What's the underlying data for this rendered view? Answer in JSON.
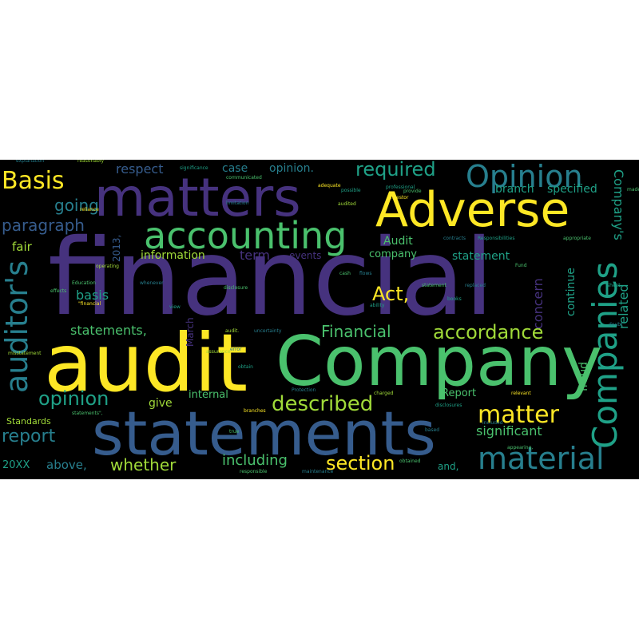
{
  "words": {
    "financial": "financial",
    "audit": "audit",
    "company": "Company",
    "statements": "statements",
    "adverse": "Adverse",
    "matters": "matters",
    "accounting": "accounting",
    "opinion_cap": "Opinion",
    "companies": "Companies",
    "auditors": "auditor's",
    "material": "material",
    "matter": "matter",
    "basis_cap": "Basis",
    "described": "described",
    "required": "required",
    "section": "section",
    "accordance": "accordance",
    "financial_cap": "Financial",
    "act": "Act,",
    "opinion": "opinion",
    "report": "report",
    "paragraph": "paragraph",
    "going": "going",
    "whether": "whether",
    "statements_comma": "statements,",
    "including": "including",
    "significant": "significant",
    "respect": "respect",
    "case": "case",
    "opinion_dot": "opinion.",
    "branch": "branch",
    "specified": "specified",
    "companys": "Company's",
    "fair": "fair",
    "basis": "basis",
    "information": "information",
    "term": "term",
    "events": "events",
    "audit_cap": "Audit",
    "company_low": "company",
    "statement": "statement",
    "concern": "concern",
    "continue": "continue",
    "related": "related",
    "fraud": "fraud",
    "report_cap": "Report",
    "internal": "internal",
    "give": "give",
    "standards": "Standards",
    "above": "above,",
    "and": "and,",
    "year_20xx": "20XX",
    "march": "March",
    "year_2013": "2013,",
    "small": [
      "explanation",
      "reasonably",
      "significance",
      "communicated",
      "adequate",
      "possible",
      "limitation",
      "audited",
      "professional",
      "provide",
      "Investor",
      "Responsibilities",
      "appropriate",
      "contracts",
      "obtained",
      "reliance",
      "Education",
      "whenever",
      "disclosure",
      "replaced",
      "operating",
      "effects",
      "ability",
      "statement",
      "included",
      "audit.",
      "uncertainty",
      "obtain",
      "charged",
      "Protection",
      "branches",
      "responsible",
      "maintenance",
      "misstatement",
      "true",
      "disclosures",
      "based",
      "appearing,",
      "\"financial",
      "statements\",",
      "error",
      "view",
      "cash",
      "flows",
      "assurance",
      "Fund",
      "books",
      "relevant",
      "sheet",
      "made",
      "doubt"
    ]
  },
  "colors": {
    "background": "#000000",
    "page": "#ffffff",
    "purple": "#46327e",
    "blue": "#365c8d",
    "teal": "#277f8e",
    "cyan": "#1fa187",
    "green": "#4ac16d",
    "lime": "#a0da39",
    "yellow": "#fde725"
  }
}
